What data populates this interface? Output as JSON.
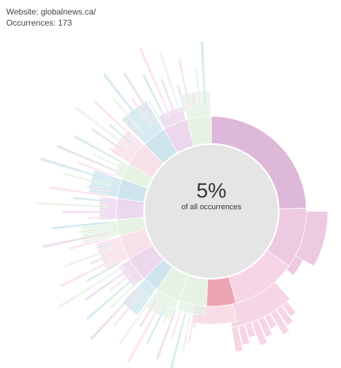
{
  "info": {
    "website_label": "Website:",
    "website_value": "globalnews.ca/",
    "occurrences_label": "Occurrences:",
    "occurrences_value": "173"
  },
  "center": {
    "percentage": "5%",
    "subtitle": "of all occurrences"
  },
  "colors": {
    "hub": "#e5e5e5",
    "highlight_primary": "#deb8d8",
    "highlight_light": "#eec9e2",
    "highlight_lighter": "#f5d5e6",
    "selected_red": "#eea5b3",
    "blue": "#c9e3ed",
    "green": "#e4f2e2",
    "faded_pink": "#f8dde7",
    "faded_purple": "#e9d4ea"
  }
}
